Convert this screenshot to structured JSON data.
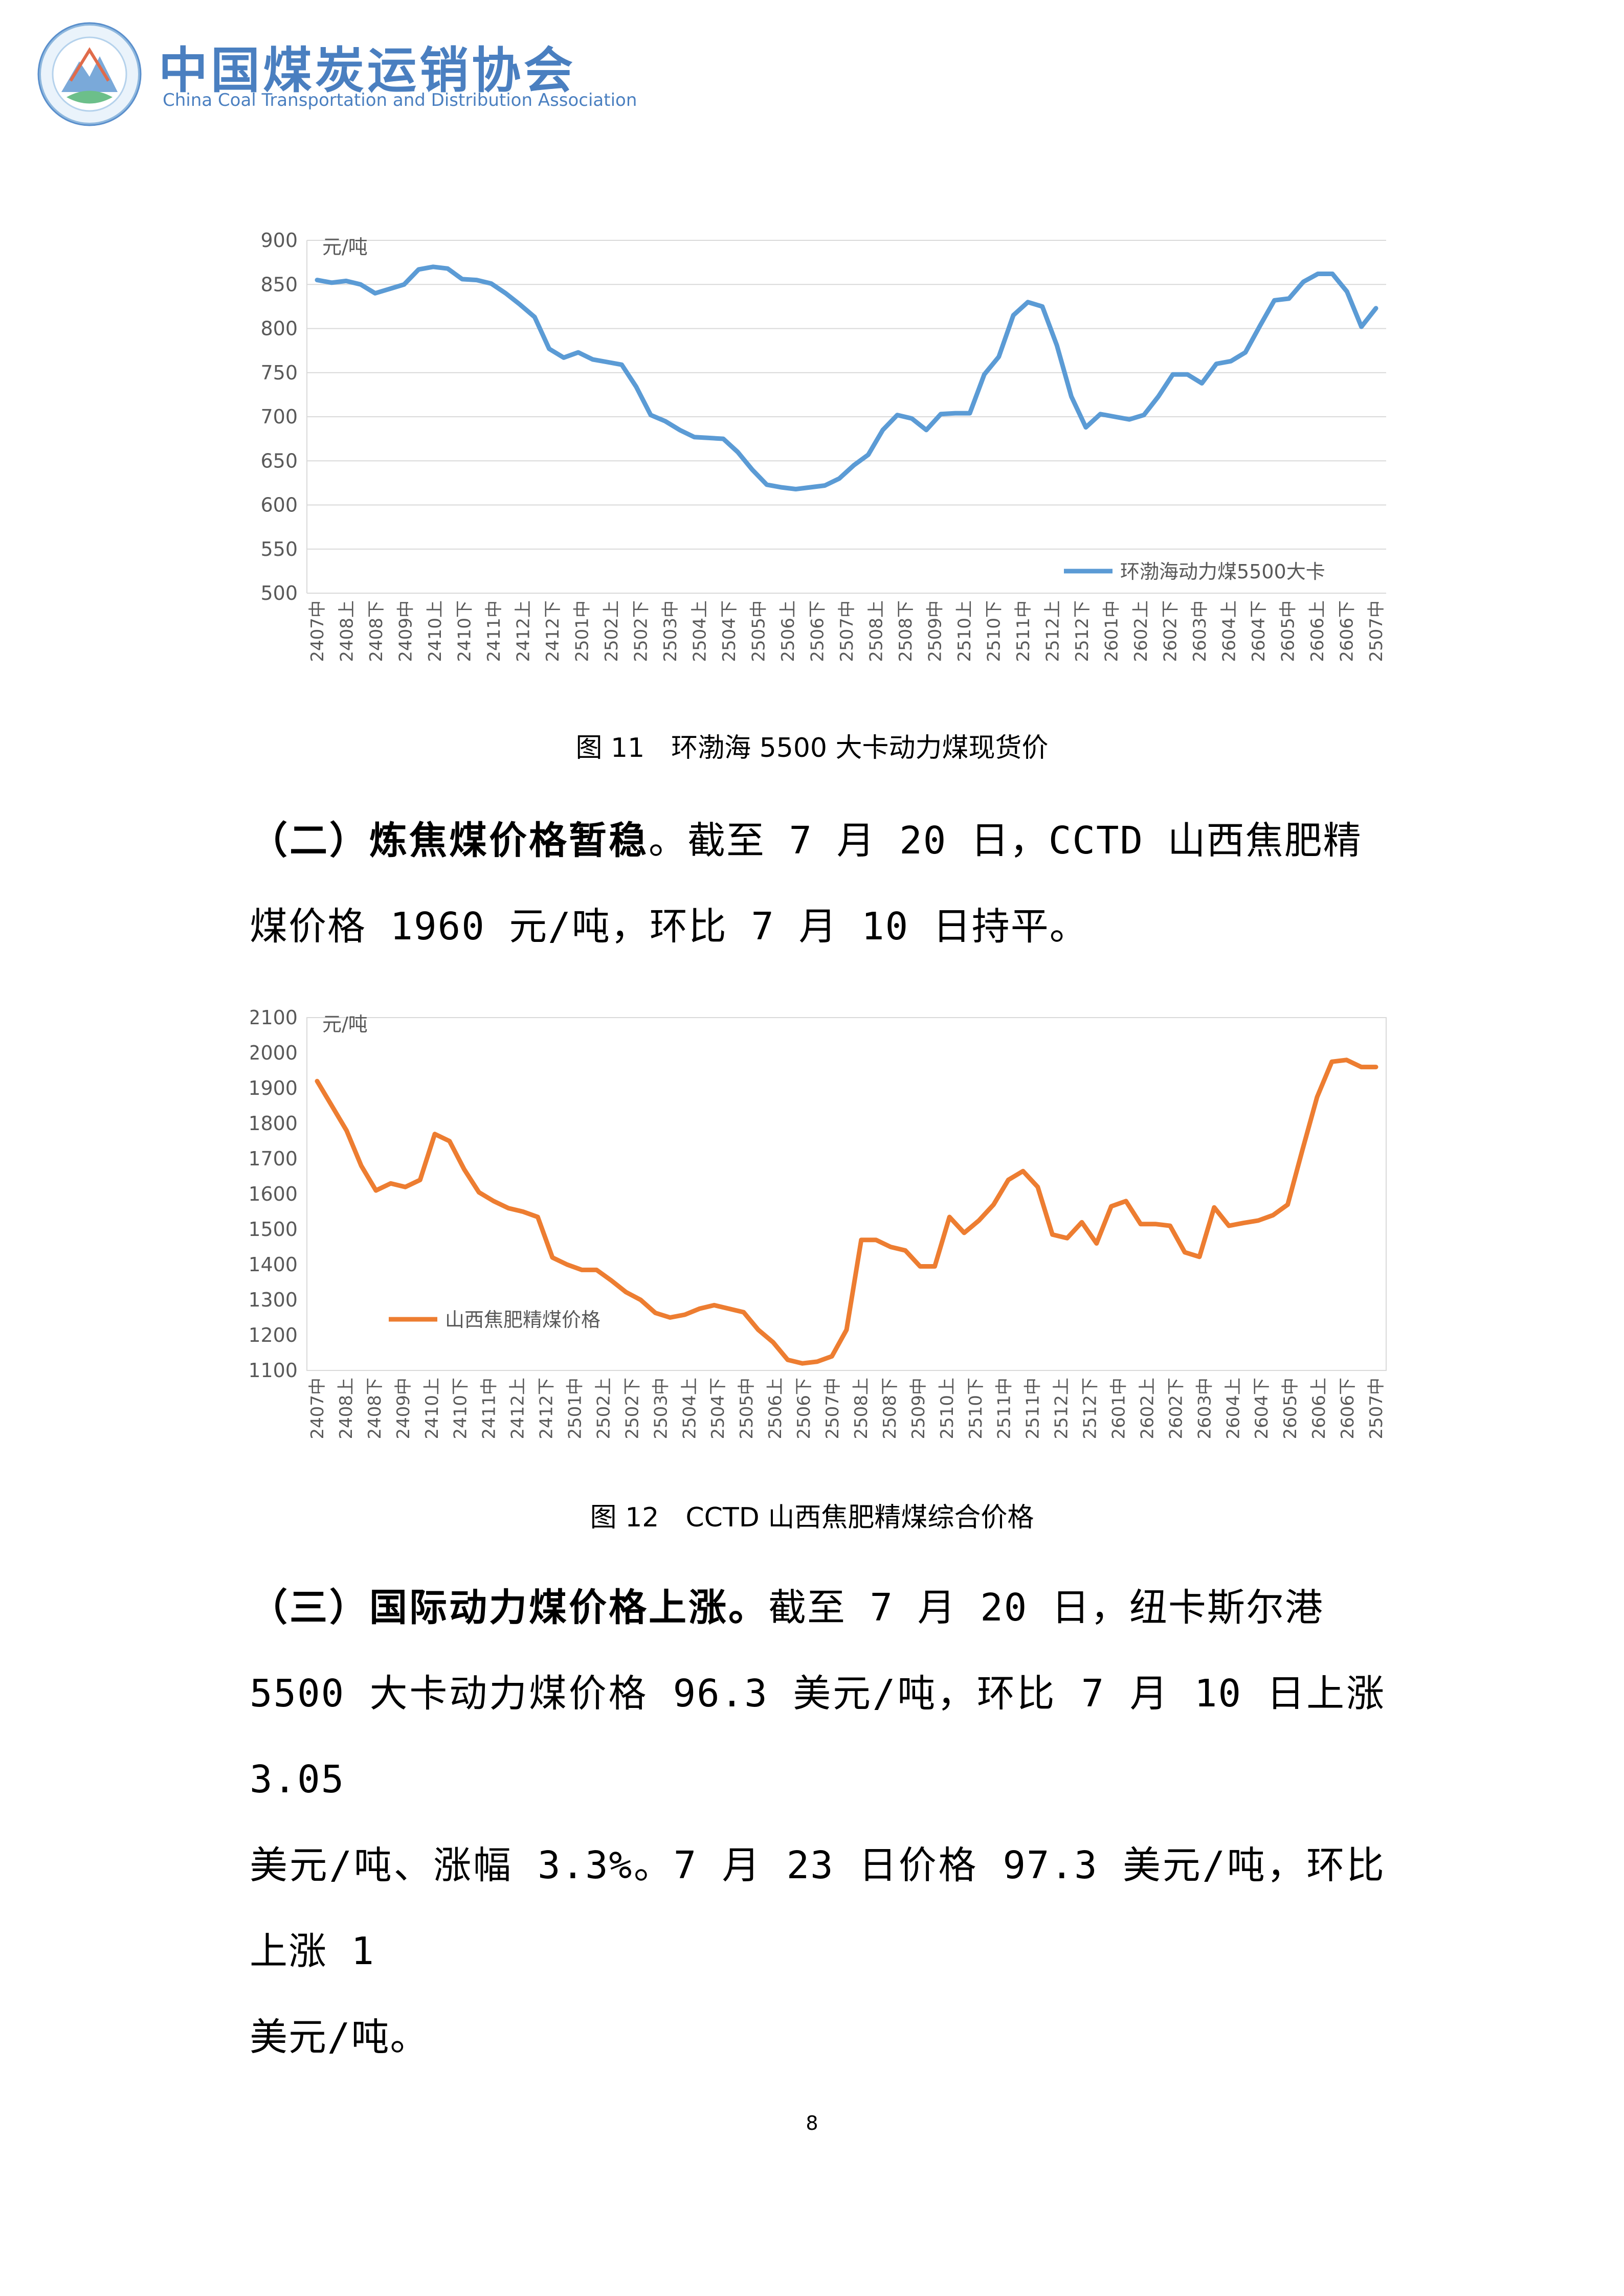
{
  "header": {
    "org_name_cn": "中国煤炭运销协会",
    "org_name_en": "China Coal Transportation and Distribution Association",
    "logo_ring_text": "中国煤炭运销协会"
  },
  "charts": [
    {
      "caption": "图 11　环渤海 5500 大卡动力煤现货价",
      "chart_data": {
        "type": "line",
        "unit": "元/吨",
        "legend": "环渤海动力煤5500大卡",
        "legend_position": "bottom-right",
        "color": "#5b9bd5",
        "ylim": [
          500,
          900
        ],
        "yticks": [
          900,
          850,
          800,
          750,
          700,
          650,
          600,
          550,
          500
        ],
        "grid": true,
        "xlabels": [
          "2407中",
          "2408上",
          "2408下",
          "2409中",
          "2410上",
          "2410下",
          "2411中",
          "2412上",
          "2412下",
          "2501中",
          "2502上",
          "2502下",
          "2503中",
          "2504上",
          "2504下",
          "2505中",
          "2506上",
          "2506下",
          "2507中",
          "2508上",
          "2508下",
          "2509中",
          "2510上",
          "2510下",
          "2511中",
          "2512上",
          "2512下",
          "2601中",
          "2602上",
          "2602下",
          "2603中",
          "2604上",
          "2604下",
          "2605中",
          "2606上",
          "2606下",
          "2507中"
        ],
        "values": [
          855,
          852,
          854,
          850,
          840,
          845,
          850,
          867,
          870,
          868,
          856,
          855,
          851,
          840,
          827,
          813,
          777,
          767,
          773,
          765,
          762,
          759,
          734,
          702,
          695,
          685,
          677,
          676,
          675,
          660,
          640,
          623,
          620,
          618,
          620,
          622,
          630,
          645,
          657,
          685,
          702,
          698,
          685,
          703,
          704,
          704,
          748,
          768,
          815,
          830,
          825,
          781,
          723,
          688,
          703,
          700,
          697,
          702,
          723,
          748,
          748,
          738,
          760,
          763,
          773,
          803,
          832,
          834,
          853,
          862,
          862,
          842,
          802,
          823
        ]
      }
    },
    {
      "caption": "图 12　CCTD 山西焦肥精煤综合价格",
      "chart_data": {
        "type": "line",
        "unit": "元/吨",
        "legend": "山西焦肥精煤价格",
        "legend_position": "bottom-left",
        "color": "#ed7d31",
        "ylim": [
          1100,
          2100
        ],
        "yticks": [
          2100,
          2000,
          1900,
          1800,
          1700,
          1600,
          1500,
          1400,
          1300,
          1200,
          1100
        ],
        "grid": false,
        "xlabels": [
          "2407中",
          "2408上",
          "2408下",
          "2409中",
          "2410上",
          "2410下",
          "2411中",
          "2412上",
          "2412下",
          "2501中",
          "2502上",
          "2502下",
          "2503中",
          "2504上",
          "2504下",
          "2505中",
          "2506上",
          "2506下",
          "2507中",
          "2508上",
          "2508下",
          "2509中",
          "2510上",
          "2510下",
          "2511中",
          "2511中",
          "2512上",
          "2512下",
          "2601中",
          "2602上",
          "2602下",
          "2603中",
          "2604上",
          "2604下",
          "2605中",
          "2606上",
          "2606下",
          "2507中"
        ],
        "values": [
          1920,
          1850,
          1780,
          1680,
          1610,
          1630,
          1620,
          1640,
          1770,
          1750,
          1670,
          1605,
          1580,
          1560,
          1550,
          1535,
          1420,
          1400,
          1385,
          1385,
          1355,
          1322,
          1300,
          1263,
          1250,
          1258,
          1275,
          1285,
          1275,
          1265,
          1215,
          1180,
          1130,
          1120,
          1125,
          1140,
          1215,
          1470,
          1470,
          1450,
          1440,
          1395,
          1395,
          1535,
          1490,
          1525,
          1570,
          1640,
          1665,
          1620,
          1485,
          1475,
          1520,
          1460,
          1565,
          1580,
          1515,
          1515,
          1510,
          1435,
          1422,
          1562,
          1510,
          1518,
          1525,
          1540,
          1570,
          1725,
          1875,
          1975,
          1980,
          1960,
          1960
        ]
      }
    }
  ],
  "paragraphs": [
    {
      "lead": "（二）炼焦煤价格暂稳",
      "lines": [
        "。截至 7 月 20 日，CCTD 山西焦肥精",
        "煤价格 1960 元/吨，环比 7 月 10 日持平。"
      ]
    },
    {
      "lead": "（三）国际动力煤价格上涨。",
      "lines": [
        "截至 7 月 20 日，纽卡斯尔港",
        "5500 大卡动力煤价格 96.3 美元/吨，环比 7 月 10 日上涨 3.05",
        "美元/吨、涨幅 3.3%。7 月 23 日价格 97.3 美元/吨，环比上涨 1",
        "美元/吨。"
      ]
    }
  ],
  "page_number": "8"
}
